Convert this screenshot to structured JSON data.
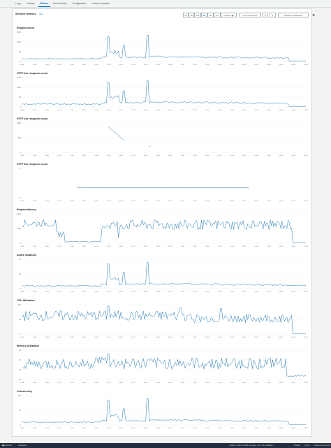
{
  "tabs": [
    {
      "label": "Logs",
      "active": false
    },
    {
      "label": "Activity",
      "active": false
    },
    {
      "label": "Metrics",
      "active": true
    },
    {
      "label": "Observability",
      "active": false
    },
    {
      "label": "Configuration",
      "active": false
    },
    {
      "label": "Custom domains",
      "active": false
    }
  ],
  "panel": {
    "title": "Service metrics",
    "info": "Info"
  },
  "toolbar": {
    "ranges": [
      "1h",
      "3h",
      "12h",
      "1d",
      "3d",
      "1w"
    ],
    "selected_range": "1d",
    "custom": "Custom",
    "timezone": "UTC timezone",
    "refresh_icon": "refresh-icon",
    "options_icon": "caret-down-icon",
    "add_dashboard": "Add to dashboard"
  },
  "x_ticks": [
    "08:00",
    "09:00",
    "10:00",
    "11:00",
    "12:00",
    "13:00",
    "14:00",
    "15:00",
    "16:00",
    "17:00",
    "18:00",
    "19:00",
    "20:00",
    "21:00",
    "22:00",
    "23:00",
    "00:00",
    "01:00",
    "02:00",
    "03:00",
    "04:00",
    "05:00",
    "06:00",
    "07:00"
  ],
  "accent_color": "#1f77b4",
  "charts": [
    {
      "key": "request_count",
      "title": "Request count",
      "y_ticks": [
        "15.0K",
        "10.0K",
        "5K",
        "0"
      ],
      "top": 38
    },
    {
      "key": "http_2xx",
      "title": "HTTP 2xx response count",
      "y_ticks": [
        "15.0K",
        "10.0K",
        "5K",
        "0"
      ],
      "top": 103
    },
    {
      "key": "http_4xx",
      "title": "HTTP 4xx response count",
      "y_ticks": [
        "1.00K",
        "500",
        "0"
      ],
      "top": 168
    },
    {
      "key": "http_5xx",
      "title": "HTTP 5xx response count",
      "y_ticks": [
        "1",
        "0"
      ],
      "top": 233
    },
    {
      "key": "latency",
      "title": "Request latency",
      "y_ticks": [
        "2.00K",
        "1.00K",
        "0"
      ],
      "top": 298
    },
    {
      "key": "instances",
      "title": "Active instances",
      "y_ticks": [
        "40",
        "20",
        "0"
      ],
      "top": 363
    },
    {
      "key": "cpu",
      "title": "CPU Utilization",
      "y_ticks": [
        "100",
        "50",
        "0"
      ],
      "top": 428
    },
    {
      "key": "memory",
      "title": "Memory Utilization",
      "y_ticks": [
        "80",
        "60",
        "40",
        "20"
      ],
      "top": 493
    },
    {
      "key": "concurrency",
      "title": "Concurrency",
      "y_ticks": [
        "100",
        "50",
        "0"
      ],
      "top": 558
    }
  ],
  "footer": {
    "cloudshell": "CloudShell",
    "feedback": "Feedback",
    "copyright": "© 2024, Amazon Web Services, Inc. or its affiliates.",
    "privacy": "Privacy",
    "terms": "Terms",
    "cookie": "Cookie preferences"
  }
}
